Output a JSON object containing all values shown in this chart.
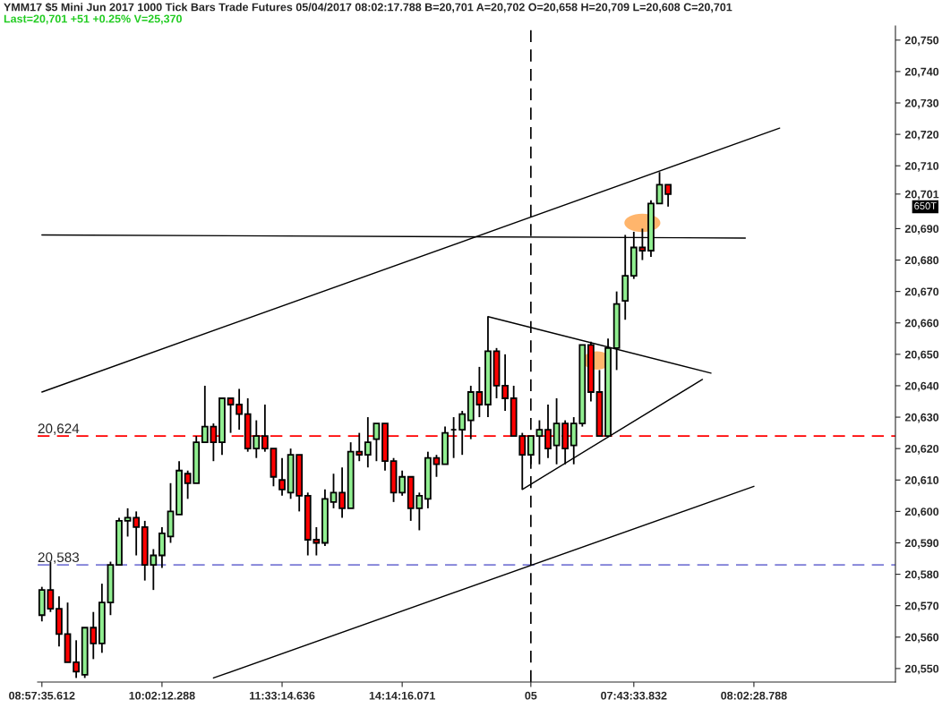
{
  "chart_data": {
    "type": "candlestick",
    "title": "YMM17 $5 Mini Jun 2017 1000 Tick Bars Trade Futures 05/04/2017 08:02:17.788 B=20,701 A=20,702 O=20,658 H=20,709 L=20,608 C=20,701",
    "subtitle": "Last=20,701 +51 +0.25% V=25,370",
    "annotations": [
      "650T"
    ],
    "categories": [
      "08:57:35.612",
      null,
      null,
      null,
      null,
      null,
      null,
      null,
      null,
      null,
      null,
      null,
      null,
      null,
      "10:02:12.288",
      null,
      null,
      null,
      null,
      null,
      null,
      null,
      null,
      null,
      null,
      null,
      null,
      null,
      "11:33:14.636",
      null,
      null,
      null,
      null,
      null,
      null,
      null,
      null,
      null,
      null,
      null,
      null,
      null,
      "14:14:16.071",
      null,
      null,
      null,
      null,
      null,
      null,
      null,
      null,
      null,
      null,
      null,
      null,
      null,
      null,
      "05",
      null,
      null,
      null,
      null,
      null,
      null,
      null,
      null,
      null,
      null,
      null,
      "07:43:33.832",
      null,
      null,
      null,
      null,
      null,
      null,
      null,
      null,
      null,
      null,
      null,
      null,
      null,
      "08:02:28.788",
      null,
      null,
      null,
      null,
      null,
      null,
      null,
      null,
      null,
      null,
      null,
      null,
      null,
      null,
      null,
      null
    ],
    "ohlc": [
      [
        20567,
        20576,
        20565,
        20575
      ],
      [
        20575,
        20584,
        20568,
        20569
      ],
      [
        20569,
        20573,
        20557,
        20561
      ],
      [
        20561,
        20571,
        20552,
        20552
      ],
      [
        20552,
        20559,
        20547,
        20549
      ],
      [
        20548,
        20563,
        20547,
        20563
      ],
      [
        20563,
        20568,
        20553,
        20558
      ],
      [
        20558,
        20577,
        20555,
        20571
      ],
      [
        20571,
        20584,
        20567,
        20583
      ],
      [
        20583,
        20598,
        20583,
        20597
      ],
      [
        20597,
        20601,
        20592,
        20598
      ],
      [
        20598,
        20600,
        20586,
        20595
      ],
      [
        20595,
        20597,
        20578,
        20583
      ],
      [
        20583,
        20588,
        20575,
        20586
      ],
      [
        20586,
        20595,
        20582,
        20593
      ],
      [
        20592,
        20609,
        20590,
        20600
      ],
      [
        20599,
        20616,
        20599,
        20613
      ],
      [
        20612,
        20613,
        20604,
        20609
      ],
      [
        20609,
        20624,
        20609,
        20622
      ],
      [
        20622,
        20640,
        20622,
        20627
      ],
      [
        20627,
        20628,
        20616,
        20622
      ],
      [
        20622,
        20636,
        20618,
        20636
      ],
      [
        20636,
        20636,
        20625,
        20634
      ],
      [
        20634,
        20639,
        20626,
        20631
      ],
      [
        20631,
        20636,
        20619,
        20620
      ],
      [
        20620,
        20629,
        20617,
        20624
      ],
      [
        20624,
        20634,
        20619,
        20620
      ],
      [
        20620,
        20620,
        20608,
        20611
      ],
      [
        20610,
        20617,
        20605,
        20607
      ],
      [
        20606,
        20620,
        20604,
        20618
      ],
      [
        20618,
        20618,
        20600,
        20605
      ],
      [
        20605,
        20606,
        20586,
        20591
      ],
      [
        20591,
        20595,
        20586,
        20590
      ],
      [
        20590,
        20607,
        20589,
        20604
      ],
      [
        20603,
        20612,
        20601,
        20606
      ],
      [
        20606,
        20614,
        20598,
        20601
      ],
      [
        20601,
        20622,
        20601,
        20619
      ],
      [
        20619,
        20625,
        20616,
        20618
      ],
      [
        20618,
        20630,
        20614,
        20622
      ],
      [
        20623,
        20628,
        20616,
        20628
      ],
      [
        20628,
        20628,
        20613,
        20616
      ],
      [
        20616,
        20617,
        20603,
        20606
      ],
      [
        20606,
        20613,
        20605,
        20611
      ],
      [
        20611,
        20611,
        20597,
        20601
      ],
      [
        20601,
        20606,
        20594,
        20605
      ],
      [
        20604,
        20619,
        20601,
        20617
      ],
      [
        20617,
        20618,
        20611,
        20615
      ],
      [
        20615,
        20627,
        20615,
        20625
      ],
      [
        20626,
        20630,
        20617,
        20626
      ],
      [
        20626,
        20632,
        20618,
        20631
      ],
      [
        20629,
        20640,
        20623,
        20638
      ],
      [
        20638,
        20646,
        20630,
        20634
      ],
      [
        20634,
        20662,
        20630,
        20651
      ],
      [
        20651,
        20652,
        20636,
        20640
      ],
      [
        20640,
        20650,
        20632,
        20636
      ],
      [
        20636,
        20640,
        20624,
        20624
      ],
      [
        20624,
        20625,
        20607,
        20618
      ],
      [
        20618,
        20624,
        20615,
        20624
      ],
      [
        20624,
        20629,
        20615,
        20626
      ],
      [
        20626,
        20634,
        20617,
        20620
      ],
      [
        20621,
        20636,
        20615,
        20628
      ],
      [
        20628,
        20629,
        20615,
        20620
      ],
      [
        20621,
        20630,
        20615,
        20628
      ],
      [
        20628,
        20653,
        20627,
        20653
      ],
      [
        20653,
        20654,
        20635,
        20638
      ],
      [
        20638,
        20645,
        20624,
        20624
      ],
      [
        20624,
        20655,
        20624,
        20652
      ],
      [
        20652,
        20670,
        20645,
        20666
      ],
      [
        20667,
        20688,
        20661,
        20675
      ],
      [
        20675,
        20689,
        20674,
        20684
      ],
      [
        20684,
        20690,
        20680,
        20683
      ],
      [
        20683,
        20699,
        20681,
        20698
      ],
      [
        20698,
        20708,
        20698,
        20704
      ],
      [
        20704,
        20704,
        20697,
        20701
      ],
      null,
      null,
      null,
      null,
      null,
      null,
      null,
      null,
      null,
      null,
      null,
      null,
      null,
      null,
      null,
      null,
      null,
      null,
      null,
      null,
      null,
      null,
      null,
      null,
      null,
      null
    ],
    "colors": [
      "#90ee90",
      "#ff0000",
      "#ff0000",
      "#ff0000",
      "#ff0000",
      "#90ee90",
      "#ff0000",
      "#90ee90",
      "#90ee90",
      "#90ee90",
      "#90ee90",
      "#ff0000",
      "#ff0000",
      "#90ee90",
      "#90ee90",
      "#90ee90",
      "#90ee90",
      "#ff0000",
      "#90ee90",
      "#90ee90",
      "#ff0000",
      "#90ee90",
      "#ff0000",
      "#ff0000",
      "#ff0000",
      "#90ee90",
      "#ff0000",
      "#ff0000",
      "#ff0000",
      "#90ee90",
      "#ff0000",
      "#ff0000",
      "#ff0000",
      "#90ee90",
      "#90ee90",
      "#ff0000",
      "#90ee90",
      "#ff0000",
      "#90ee90",
      "#90ee90",
      "#ff0000",
      "#ff0000",
      "#90ee90",
      "#ff0000",
      "#90ee90",
      "#90ee90",
      "#ff0000",
      "#90ee90",
      "#000000",
      "#90ee90",
      "#90ee90",
      "#ff0000",
      "#90ee90",
      "#ff0000",
      "#ff0000",
      "#ff0000",
      "#ff0000",
      "#90ee90",
      "#90ee90",
      "#ff0000",
      "#90ee90",
      "#ff0000",
      "#90ee90",
      "#90ee90",
      "#ff0000",
      "#ff0000",
      "#90ee90",
      "#90ee90",
      "#90ee90",
      "#90ee90",
      "#ff0000",
      "#90ee90",
      "#90ee90",
      "#ff0000",
      null,
      null,
      null,
      null,
      null,
      null,
      null,
      null,
      null,
      null,
      null,
      null,
      null,
      null,
      null,
      null,
      null,
      null,
      null,
      null,
      null,
      null,
      null,
      null,
      null,
      null
    ],
    "series": [
      {
        "type": "line",
        "color": "#000000",
        "values": [
          20638,
          null,
          null,
          null,
          null,
          null,
          null,
          null,
          null,
          null,
          null,
          null,
          null,
          null,
          null,
          null,
          null,
          null,
          null,
          null,
          null,
          null,
          null,
          null,
          null,
          null,
          null,
          null,
          null,
          null,
          null,
          null,
          null,
          null,
          null,
          null,
          null,
          null,
          null,
          null,
          null,
          null,
          null,
          null,
          null,
          null,
          null,
          null,
          null,
          null,
          null,
          null,
          null,
          null,
          null,
          null,
          null,
          null,
          null,
          null,
          null,
          null,
          null,
          null,
          null,
          null,
          null,
          null,
          null,
          null,
          null,
          null,
          null,
          null,
          null,
          null,
          null,
          null,
          null,
          null,
          null,
          null,
          null,
          null,
          null,
          null,
          20722,
          null,
          null,
          null,
          null,
          null,
          null,
          null,
          null,
          null,
          null,
          null,
          null,
          null
        ]
      },
      {
        "type": "line",
        "color": "#000000",
        "values": [
          null,
          null,
          null,
          null,
          null,
          null,
          null,
          null,
          null,
          null,
          null,
          null,
          null,
          null,
          null,
          null,
          null,
          null,
          null,
          null,
          20547,
          null,
          null,
          null,
          null,
          null,
          null,
          null,
          null,
          null,
          null,
          null,
          null,
          null,
          null,
          null,
          null,
          null,
          null,
          null,
          null,
          null,
          null,
          null,
          null,
          null,
          null,
          null,
          null,
          null,
          null,
          null,
          null,
          null,
          null,
          null,
          null,
          null,
          null,
          null,
          null,
          null,
          null,
          null,
          null,
          null,
          null,
          null,
          null,
          null,
          null,
          null,
          null,
          null,
          null,
          null,
          null,
          null,
          null,
          null,
          null,
          null,
          null,
          20608,
          null,
          null,
          null,
          null,
          null,
          null,
          null,
          null,
          null,
          null,
          null,
          null,
          null,
          null,
          null,
          null
        ]
      },
      {
        "type": "line",
        "color": "#000000",
        "values": [
          20688,
          null,
          null,
          null,
          null,
          null,
          null,
          null,
          null,
          null,
          null,
          null,
          null,
          null,
          null,
          null,
          null,
          null,
          null,
          null,
          null,
          null,
          null,
          null,
          null,
          null,
          null,
          null,
          null,
          null,
          null,
          null,
          null,
          null,
          null,
          null,
          null,
          null,
          null,
          null,
          null,
          null,
          null,
          null,
          null,
          null,
          null,
          null,
          null,
          null,
          null,
          null,
          null,
          null,
          null,
          null,
          null,
          null,
          null,
          null,
          null,
          null,
          null,
          null,
          null,
          null,
          null,
          null,
          null,
          null,
          null,
          null,
          null,
          null,
          null,
          null,
          null,
          null,
          null,
          null,
          null,
          null,
          20687,
          null,
          null,
          null,
          null,
          null,
          null,
          null,
          null,
          null,
          null,
          null,
          null,
          null,
          null,
          null,
          null,
          null
        ]
      },
      {
        "type": "line",
        "color": "#000000",
        "values": [
          null,
          null,
          null,
          null,
          null,
          null,
          null,
          null,
          null,
          null,
          null,
          null,
          null,
          null,
          null,
          null,
          null,
          null,
          null,
          null,
          null,
          null,
          null,
          null,
          null,
          null,
          null,
          null,
          null,
          null,
          null,
          null,
          null,
          null,
          null,
          null,
          null,
          null,
          null,
          null,
          null,
          null,
          null,
          null,
          null,
          null,
          null,
          null,
          null,
          null,
          null,
          null,
          20662,
          null,
          null,
          null,
          null,
          null,
          null,
          null,
          null,
          null,
          null,
          null,
          null,
          null,
          null,
          null,
          null,
          null,
          null,
          null,
          null,
          null,
          null,
          null,
          null,
          null,
          20644,
          null,
          null,
          null,
          null,
          null,
          null,
          null,
          null,
          null,
          null,
          null,
          null,
          null,
          null,
          null,
          null,
          null,
          null,
          null,
          null,
          null
        ]
      },
      {
        "type": "line",
        "color": "#000000",
        "values": [
          null,
          null,
          null,
          null,
          null,
          null,
          null,
          null,
          null,
          null,
          null,
          null,
          null,
          null,
          null,
          null,
          null,
          null,
          null,
          null,
          null,
          null,
          null,
          null,
          null,
          null,
          null,
          null,
          null,
          null,
          null,
          null,
          null,
          null,
          null,
          null,
          null,
          null,
          null,
          null,
          null,
          null,
          null,
          null,
          null,
          null,
          null,
          null,
          null,
          null,
          null,
          null,
          null,
          null,
          null,
          null,
          20607,
          null,
          null,
          null,
          null,
          null,
          null,
          null,
          null,
          null,
          null,
          null,
          null,
          null,
          null,
          null,
          null,
          null,
          null,
          null,
          null,
          20642,
          null,
          null,
          null,
          null,
          null,
          null,
          null,
          null,
          null,
          null,
          null,
          null,
          null,
          null,
          null,
          null,
          null,
          null,
          null,
          null,
          null,
          null
        ]
      }
    ],
    "ref_lines": [
      {
        "axis": "y",
        "value": 20624,
        "label": "20,624",
        "color": "#ff0000",
        "line_style": "dashed"
      },
      {
        "axis": "y",
        "value": 20583,
        "label": "20,583",
        "color": "#7b7bd6",
        "line_style": "dashed"
      },
      {
        "axis": "x",
        "value": "05",
        "label": null,
        "color": "#000000",
        "line_style": "dashed"
      }
    ],
    "ylim": [
      20545.7,
      20754.5
    ],
    "yticks": [
      {
        "value": 20550,
        "label": "20,550"
      },
      {
        "value": 20560,
        "label": "20,560"
      },
      {
        "value": 20570,
        "label": "20,570"
      },
      {
        "value": 20580,
        "label": "20,580"
      },
      {
        "value": 20590,
        "label": "20,590"
      },
      {
        "value": 20600,
        "label": "20,600"
      },
      {
        "value": 20610,
        "label": "20,610"
      },
      {
        "value": 20620,
        "label": "20,620"
      },
      {
        "value": 20630,
        "label": "20,630"
      },
      {
        "value": 20640,
        "label": "20,640"
      },
      {
        "value": 20650,
        "label": "20,650"
      },
      {
        "value": 20660,
        "label": "20,660"
      },
      {
        "value": 20670,
        "label": "20,670"
      },
      {
        "value": 20680,
        "label": "20,680"
      },
      {
        "value": 20690,
        "label": "20,690"
      },
      {
        "value": 20701,
        "label": "20,701"
      },
      {
        "value": 20710,
        "label": "20,710"
      },
      {
        "value": 20720,
        "label": "20,720"
      },
      {
        "value": 20730,
        "label": "20,730"
      },
      {
        "value": 20740,
        "label": "20,740"
      },
      {
        "value": 20750,
        "label": "20,750"
      }
    ],
    "grid": false,
    "legend": false
  }
}
